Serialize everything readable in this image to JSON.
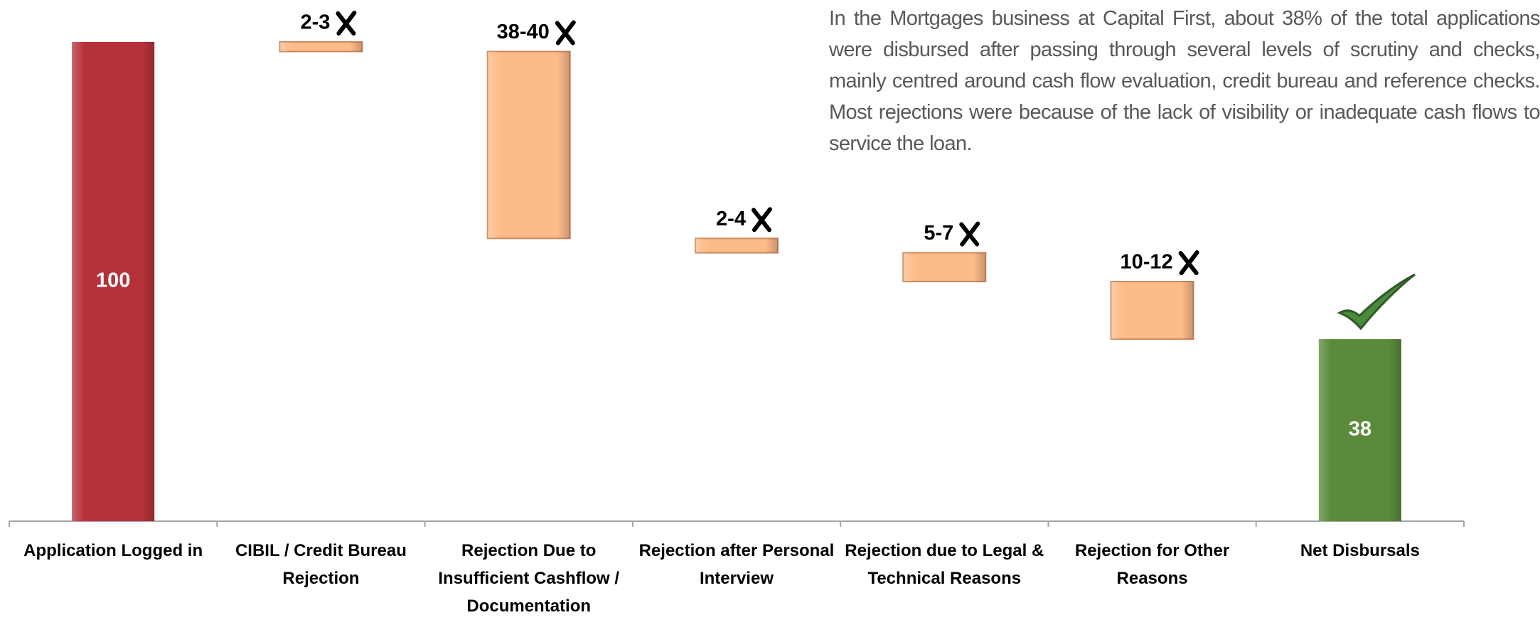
{
  "chart_data": {
    "type": "waterfall",
    "annotation": "In the Mortgages business at Capital First, about 38% of the total applications were disbursed after passing through several levels of scrutiny and checks, mainly centred around cash flow evaluation, credit bureau and reference checks. Most rejections were because of the lack of visibility or inadequate cash flows to service the loan.",
    "categories": [
      "Application Logged in",
      "CIBIL / Credit Bureau Rejection",
      "Rejection Due to Insufficient Cashflow / Documentation",
      "Rejection after Personal Interview",
      "Rejection due to Legal & Technical Reasons",
      "Rejection for Other Reasons",
      "Net Disbursals"
    ],
    "values": [
      100,
      2,
      39,
      3,
      6,
      12,
      38
    ],
    "value_labels": [
      "100",
      "2-3",
      "38-40",
      "2-4",
      "5-7",
      "10-12",
      "38"
    ],
    "kinds": [
      "total",
      "decrease",
      "decrease",
      "decrease",
      "decrease",
      "decrease",
      "total"
    ],
    "colors": [
      "#b5323a",
      "#fdbb8a",
      "#fdbb8a",
      "#fdbb8a",
      "#fdbb8a",
      "#fdbb8a",
      "#5a8a3a"
    ],
    "ylim": [
      0,
      100
    ]
  }
}
